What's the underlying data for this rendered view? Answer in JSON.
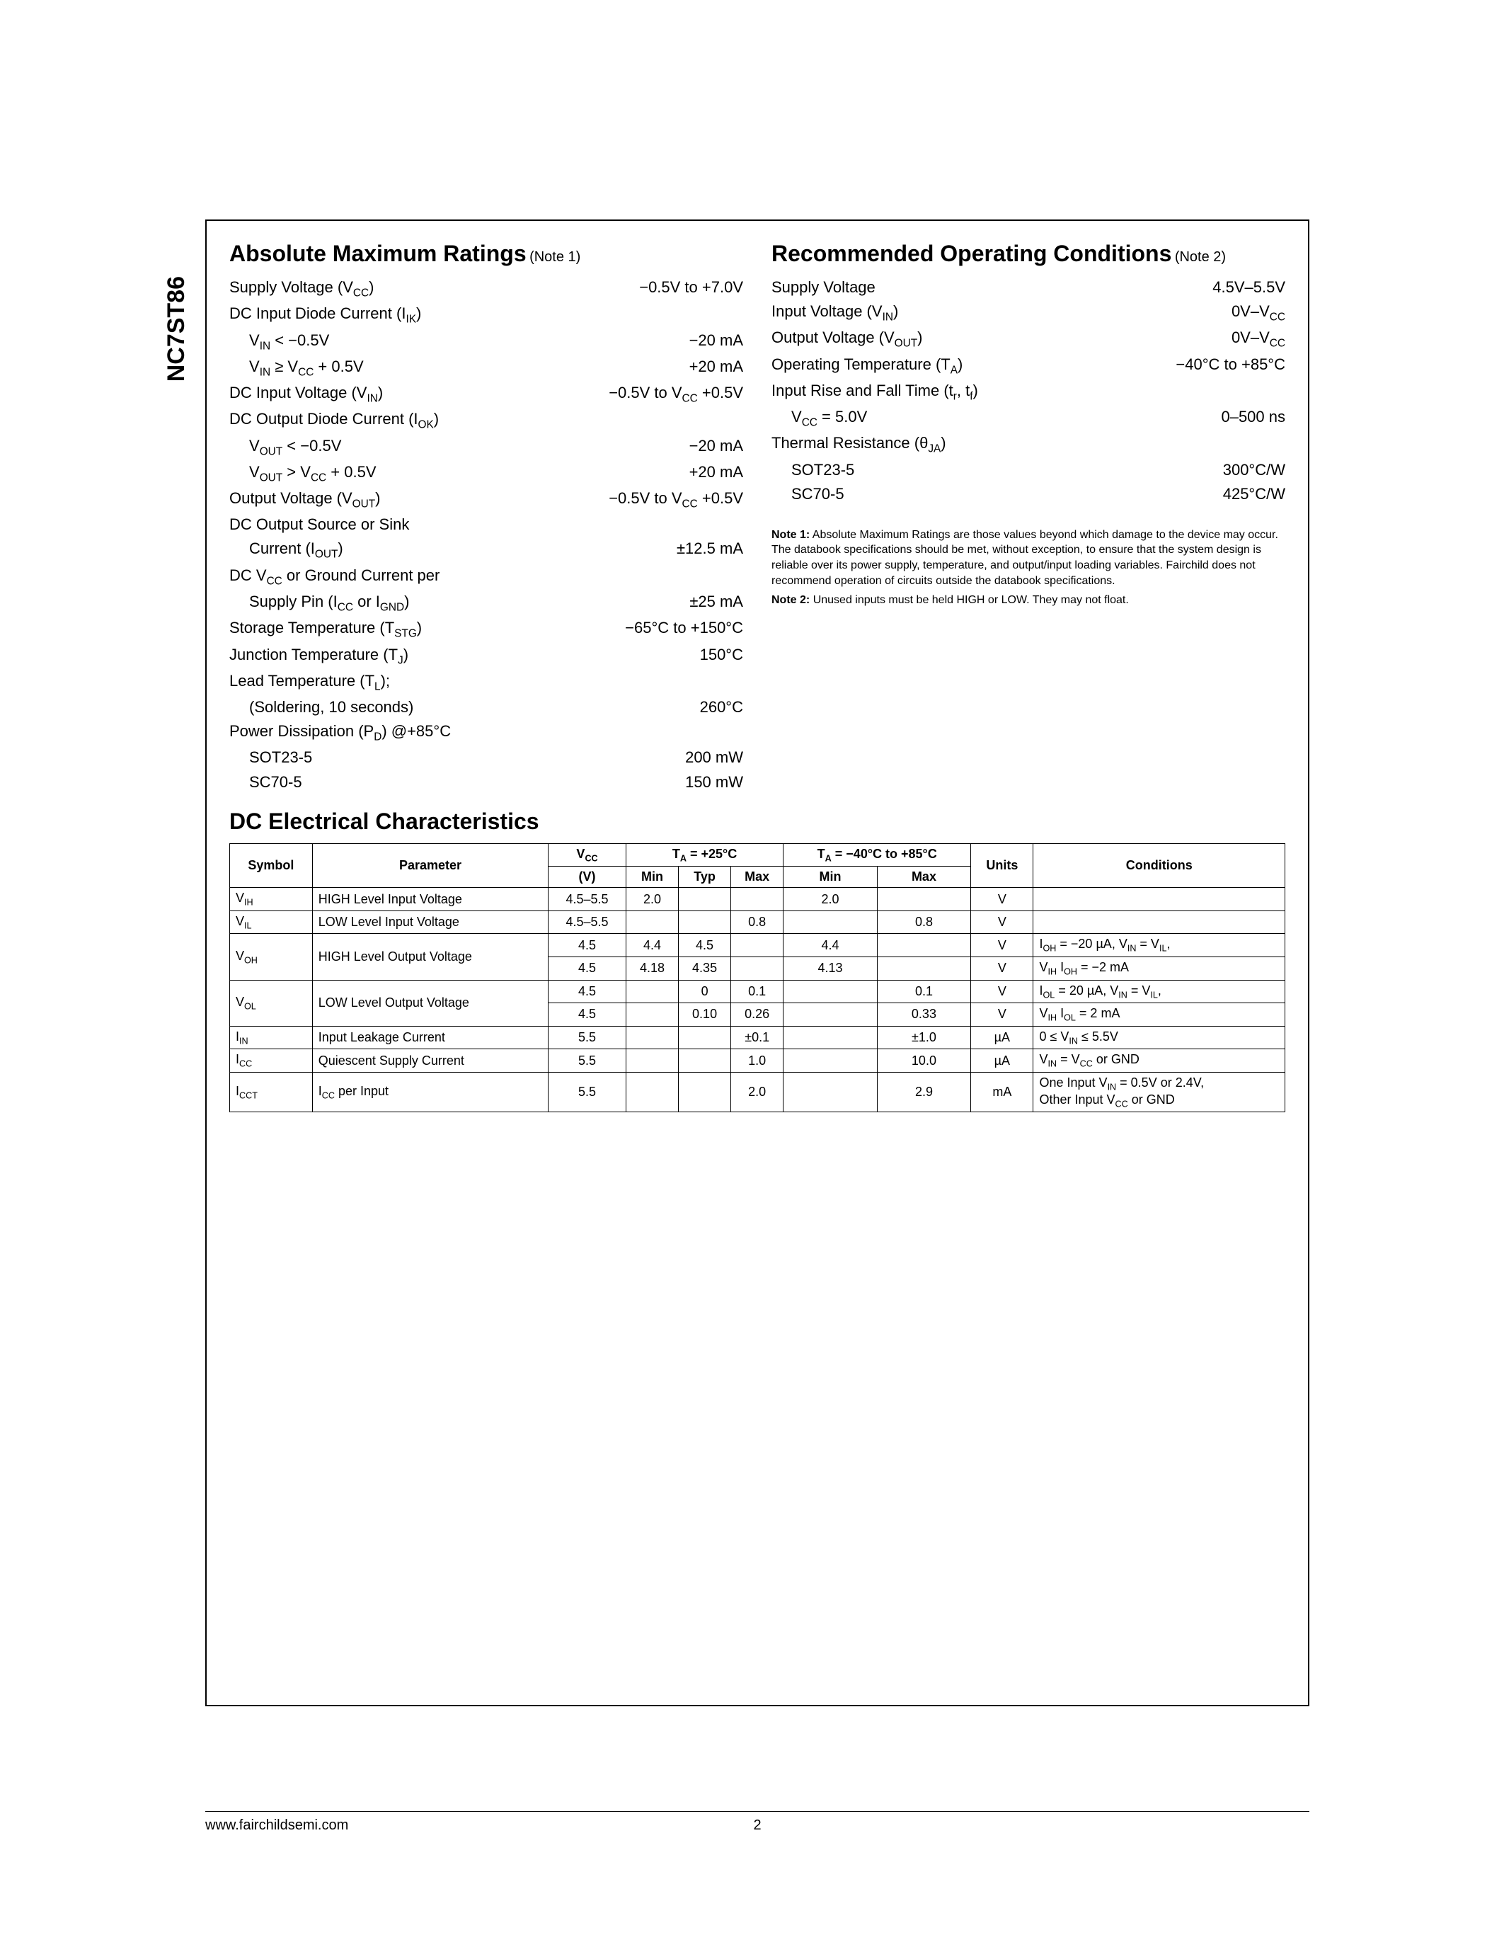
{
  "part_number": "NC7ST86",
  "abs_max": {
    "title": "Absolute Maximum Ratings",
    "note_ref": "(Note 1)",
    "rows": [
      {
        "label": "Supply Voltage (V<sub>CC</sub>)",
        "value": "−0.5V to +7.0V"
      },
      {
        "label": "DC Input Diode Current (I<sub>IK</sub>)",
        "value": ""
      },
      {
        "label": "V<sub>IN</sub> < −0.5V",
        "value": "−20 mA",
        "indent": true
      },
      {
        "label": "V<sub>IN</sub> ≥ V<sub>CC</sub> + 0.5V",
        "value": "+20 mA",
        "indent": true
      },
      {
        "label": "DC Input Voltage (V<sub>IN</sub>)",
        "value": "−0.5V to V<sub>CC</sub> +0.5V"
      },
      {
        "label": "DC Output Diode Current (I<sub>OK</sub>)",
        "value": ""
      },
      {
        "label": "V<sub>OUT</sub> < −0.5V",
        "value": "−20 mA",
        "indent": true
      },
      {
        "label": "V<sub>OUT</sub> > V<sub>CC</sub> + 0.5V",
        "value": "+20 mA",
        "indent": true
      },
      {
        "label": "Output Voltage (V<sub>OUT</sub>)",
        "value": "−0.5V to V<sub>CC</sub> +0.5V"
      },
      {
        "label": "DC Output Source or Sink",
        "value": ""
      },
      {
        "label": "Current (I<sub>OUT</sub>)",
        "value": "±12.5 mA",
        "indent": true
      },
      {
        "label": "DC V<sub>CC</sub> or Ground Current per",
        "value": ""
      },
      {
        "label": "Supply Pin (I<sub>CC</sub> or I<sub>GND</sub>)",
        "value": "±25 mA",
        "indent": true
      },
      {
        "label": "Storage Temperature (T<sub>STG</sub>)",
        "value": "−65°C to +150°C"
      },
      {
        "label": "Junction Temperature (T<sub>J</sub>)",
        "value": "150°C"
      },
      {
        "label": "Lead Temperature (T<sub>L</sub>);",
        "value": ""
      },
      {
        "label": "(Soldering, 10 seconds)",
        "value": "260°C",
        "indent": true
      },
      {
        "label": "Power Dissipation (P<sub>D</sub>) @+85°C",
        "value": ""
      },
      {
        "label": "SOT23-5",
        "value": "200 mW",
        "indent": true
      },
      {
        "label": "SC70-5",
        "value": "150 mW",
        "indent": true
      }
    ]
  },
  "rec_op": {
    "title": "Recommended Operating Conditions",
    "note_ref": "(Note 2)",
    "rows": [
      {
        "label": "Supply Voltage",
        "value": "4.5V–5.5V"
      },
      {
        "label": "Input Voltage (V<sub>IN</sub>)",
        "value": "0V–V<sub>CC</sub>"
      },
      {
        "label": "Output Voltage (V<sub>OUT</sub>)",
        "value": "0V–V<sub>CC</sub>"
      },
      {
        "label": "Operating Temperature (T<sub>A</sub>)",
        "value": "−40°C to +85°C"
      },
      {
        "label": "Input Rise and Fall Time (t<sub>r</sub>, t<sub>f</sub>)",
        "value": ""
      },
      {
        "label": "V<sub>CC</sub> = 5.0V",
        "value": "0–500 ns",
        "indent": true
      },
      {
        "label": "Thermal Resistance (θ<sub>JA</sub>)",
        "value": ""
      },
      {
        "label": "SOT23-5",
        "value": "300°C/W",
        "indent": true
      },
      {
        "label": "SC70-5",
        "value": "425°C/W",
        "indent": true
      }
    ]
  },
  "notes": {
    "note1_label": "Note 1:",
    "note1_text": "Absolute Maximum Ratings are those values beyond which damage to the device may occur. The databook specifications should be met, without exception, to ensure that the system design is reliable over its power supply, temperature, and output/input loading variables. Fairchild does not recommend operation of circuits outside the databook specifications.",
    "note2_label": "Note 2:",
    "note2_text": "Unused inputs must be held HIGH or LOW. They may not float."
  },
  "dc": {
    "title": "DC Electrical Characteristics",
    "headers": {
      "symbol": "Symbol",
      "parameter": "Parameter",
      "vcc": "V<sub>CC</sub>",
      "vcc_unit": "(V)",
      "ta25": "T<sub>A</sub> = +25°C",
      "ta40": "T<sub>A</sub> = −40°C to +85°C",
      "min": "Min",
      "typ": "Typ",
      "max": "Max",
      "units": "Units",
      "conditions": "Conditions"
    },
    "rows": [
      {
        "symbol": "V<sub>IH</sub>",
        "param": "HIGH Level Input Voltage",
        "vcc": "4.5–5.5",
        "min25": "2.0",
        "typ25": "",
        "max25": "",
        "min40": "2.0",
        "max40": "",
        "units": "V",
        "cond": "",
        "rowspan_cond": 1
      },
      {
        "symbol": "V<sub>IL</sub>",
        "param": "LOW Level Input Voltage",
        "vcc": "4.5–5.5",
        "min25": "",
        "typ25": "",
        "max25": "0.8",
        "min40": "",
        "max40": "0.8",
        "units": "V",
        "cond": "",
        "rowspan_cond": 1
      },
      {
        "symbol": "V<sub>OH</sub>",
        "param": "HIGH Level Output Voltage",
        "vcc": "4.5",
        "min25": "4.4",
        "typ25": "4.5",
        "max25": "",
        "min40": "4.4",
        "max40": "",
        "units": "V",
        "cond": "I<sub>OH</sub> = −20 µA, V<sub>IN</sub> = V<sub>IL</sub>,",
        "rowspan_sym": 2,
        "rowspan_param": 2
      },
      {
        "cont": true,
        "vcc": "4.5",
        "min25": "4.18",
        "typ25": "4.35",
        "max25": "",
        "min40": "4.13",
        "max40": "",
        "units": "V",
        "cond": "V<sub>IH</sub> I<sub>OH</sub> = −2 mA"
      },
      {
        "symbol": "V<sub>OL</sub>",
        "param": "LOW Level Output Voltage",
        "vcc": "4.5",
        "min25": "",
        "typ25": "0",
        "max25": "0.1",
        "min40": "",
        "max40": "0.1",
        "units": "V",
        "cond": "I<sub>OL</sub> = 20 µA, V<sub>IN</sub> = V<sub>IL</sub>,",
        "rowspan_sym": 2,
        "rowspan_param": 2
      },
      {
        "cont": true,
        "vcc": "4.5",
        "min25": "",
        "typ25": "0.10",
        "max25": "0.26",
        "min40": "",
        "max40": "0.33",
        "units": "V",
        "cond": "V<sub>IH</sub> I<sub>OL</sub> = 2 mA"
      },
      {
        "symbol": "I<sub>IN</sub>",
        "param": "Input Leakage Current",
        "vcc": "5.5",
        "min25": "",
        "typ25": "",
        "max25": "±0.1",
        "min40": "",
        "max40": "±1.0",
        "units": "µA",
        "cond": "0 ≤ V<sub>IN</sub> ≤ 5.5V"
      },
      {
        "symbol": "I<sub>CC</sub>",
        "param": "Quiescent Supply Current",
        "vcc": "5.5",
        "min25": "",
        "typ25": "",
        "max25": "1.0",
        "min40": "",
        "max40": "10.0",
        "units": "µA",
        "cond": "V<sub>IN</sub> = V<sub>CC</sub> or GND"
      },
      {
        "symbol": "I<sub>CCT</sub>",
        "param": "I<sub>CC</sub> per Input",
        "vcc": "5.5",
        "min25": "",
        "typ25": "",
        "max25": "2.0",
        "min40": "",
        "max40": "2.9",
        "units": "mA",
        "cond": "One Input V<sub>IN</sub> = 0.5V or 2.4V,<br>Other Input V<sub>CC</sub> or GND"
      }
    ]
  },
  "footer": {
    "url": "www.fairchildsemi.com",
    "page": "2"
  }
}
